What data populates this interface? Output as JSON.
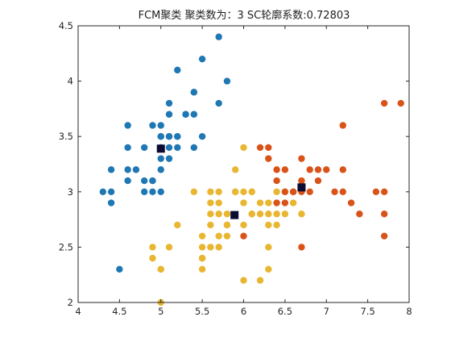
{
  "chart_data": {
    "type": "scatter",
    "title": "FCM聚类 聚类数为：3 SC轮廓系数:0.72803",
    "xlabel": "",
    "ylabel": "",
    "xlim": [
      4,
      8
    ],
    "ylim": [
      2,
      4.5
    ],
    "xticks": [
      "4",
      "4.5",
      "5",
      "5.5",
      "6",
      "6.5",
      "7",
      "7.5",
      "8"
    ],
    "yticks": [
      "2",
      "2.5",
      "3",
      "3.5",
      "4",
      "4.5"
    ],
    "grid": false,
    "legend": "none",
    "series": [
      {
        "color": "#1f77b4",
        "points": [
          [
            4.3,
            3.0
          ],
          [
            4.4,
            3.0
          ],
          [
            4.4,
            2.9
          ],
          [
            4.4,
            3.2
          ],
          [
            4.5,
            2.3
          ],
          [
            4.6,
            3.1
          ],
          [
            4.6,
            3.2
          ],
          [
            4.6,
            3.4
          ],
          [
            4.6,
            3.6
          ],
          [
            4.7,
            3.2
          ],
          [
            4.8,
            3.0
          ],
          [
            4.8,
            3.1
          ],
          [
            4.8,
            3.4
          ],
          [
            4.9,
            3.0
          ],
          [
            4.9,
            3.1
          ],
          [
            4.9,
            3.6
          ],
          [
            5.0,
            3.0
          ],
          [
            5.0,
            3.2
          ],
          [
            5.0,
            3.3
          ],
          [
            5.0,
            3.4
          ],
          [
            5.0,
            3.5
          ],
          [
            5.0,
            3.6
          ],
          [
            5.1,
            3.3
          ],
          [
            5.1,
            3.4
          ],
          [
            5.1,
            3.5
          ],
          [
            5.1,
            3.7
          ],
          [
            5.1,
            3.8
          ],
          [
            5.2,
            3.4
          ],
          [
            5.2,
            3.5
          ],
          [
            5.2,
            4.1
          ],
          [
            5.3,
            3.7
          ],
          [
            5.4,
            3.4
          ],
          [
            5.4,
            3.7
          ],
          [
            5.4,
            3.9
          ],
          [
            5.5,
            3.5
          ],
          [
            5.5,
            4.2
          ],
          [
            5.7,
            3.8
          ],
          [
            5.7,
            4.4
          ],
          [
            5.8,
            4.0
          ],
          [
            5.2,
            3.5
          ],
          [
            5.1,
            3.5
          ],
          [
            5.0,
            3.4
          ],
          [
            4.9,
            3.1
          ],
          [
            5.4,
            3.9
          ],
          [
            5.0,
            3.5
          ],
          [
            5.3,
            3.7
          ]
        ]
      },
      {
        "color": "#e8b630",
        "points": [
          [
            4.9,
            2.4
          ],
          [
            4.9,
            2.5
          ],
          [
            5.0,
            2.0
          ],
          [
            5.0,
            2.3
          ],
          [
            5.1,
            2.5
          ],
          [
            5.2,
            2.7
          ],
          [
            5.4,
            3.0
          ],
          [
            5.5,
            2.3
          ],
          [
            5.5,
            2.4
          ],
          [
            5.5,
            2.5
          ],
          [
            5.5,
            2.6
          ],
          [
            5.6,
            2.5
          ],
          [
            5.6,
            2.7
          ],
          [
            5.6,
            2.8
          ],
          [
            5.6,
            2.9
          ],
          [
            5.6,
            3.0
          ],
          [
            5.7,
            2.5
          ],
          [
            5.7,
            2.6
          ],
          [
            5.7,
            2.8
          ],
          [
            5.7,
            2.9
          ],
          [
            5.7,
            3.0
          ],
          [
            5.8,
            2.6
          ],
          [
            5.8,
            2.7
          ],
          [
            5.9,
            3.0
          ],
          [
            5.9,
            3.2
          ],
          [
            6.0,
            2.2
          ],
          [
            6.0,
            2.7
          ],
          [
            6.0,
            2.9
          ],
          [
            6.0,
            3.4
          ],
          [
            6.1,
            2.8
          ],
          [
            6.1,
            3.0
          ],
          [
            6.2,
            2.2
          ],
          [
            6.2,
            2.9
          ],
          [
            6.3,
            2.3
          ],
          [
            6.3,
            2.5
          ],
          [
            6.3,
            2.8
          ],
          [
            6.3,
            2.9
          ],
          [
            6.4,
            2.8
          ],
          [
            6.4,
            3.0
          ],
          [
            6.5,
            2.8
          ],
          [
            6.5,
            3.0
          ],
          [
            6.6,
            2.9
          ],
          [
            6.6,
            3.0
          ],
          [
            6.7,
            2.8
          ],
          [
            5.0,
            2.3
          ],
          [
            5.5,
            2.4
          ],
          [
            5.8,
            2.7
          ],
          [
            6.1,
            2.8
          ],
          [
            6.3,
            2.7
          ],
          [
            6.7,
            3.1
          ],
          [
            6.0,
            3.0
          ],
          [
            6.1,
            3.0
          ],
          [
            5.9,
            3.0
          ],
          [
            5.8,
            2.8
          ],
          [
            6.2,
            2.8
          ],
          [
            6.4,
            2.7
          ]
        ]
      },
      {
        "color": "#d95319",
        "points": [
          [
            6.0,
            2.6
          ],
          [
            6.2,
            3.4
          ],
          [
            6.3,
            3.3
          ],
          [
            6.3,
            3.4
          ],
          [
            6.4,
            3.1
          ],
          [
            6.4,
            3.2
          ],
          [
            6.5,
            2.9
          ],
          [
            6.5,
            3.0
          ],
          [
            6.5,
            3.2
          ],
          [
            6.6,
            3.0
          ],
          [
            6.7,
            2.5
          ],
          [
            6.7,
            3.0
          ],
          [
            6.7,
            3.1
          ],
          [
            6.7,
            3.3
          ],
          [
            6.8,
            3.0
          ],
          [
            6.8,
            3.2
          ],
          [
            6.9,
            3.1
          ],
          [
            6.9,
            3.2
          ],
          [
            7.0,
            3.2
          ],
          [
            7.1,
            3.0
          ],
          [
            7.2,
            3.0
          ],
          [
            7.2,
            3.2
          ],
          [
            7.2,
            3.6
          ],
          [
            7.3,
            2.9
          ],
          [
            7.4,
            2.8
          ],
          [
            7.6,
            3.0
          ],
          [
            7.7,
            2.6
          ],
          [
            7.7,
            2.8
          ],
          [
            7.7,
            3.0
          ],
          [
            7.7,
            3.8
          ],
          [
            7.9,
            3.8
          ],
          [
            6.4,
            2.9
          ],
          [
            6.6,
            3.0
          ]
        ]
      }
    ],
    "centers": {
      "color": "#0b0b33",
      "points": [
        [
          5.0,
          3.39
        ],
        [
          5.89,
          2.79
        ],
        [
          6.7,
          3.04
        ]
      ]
    }
  }
}
